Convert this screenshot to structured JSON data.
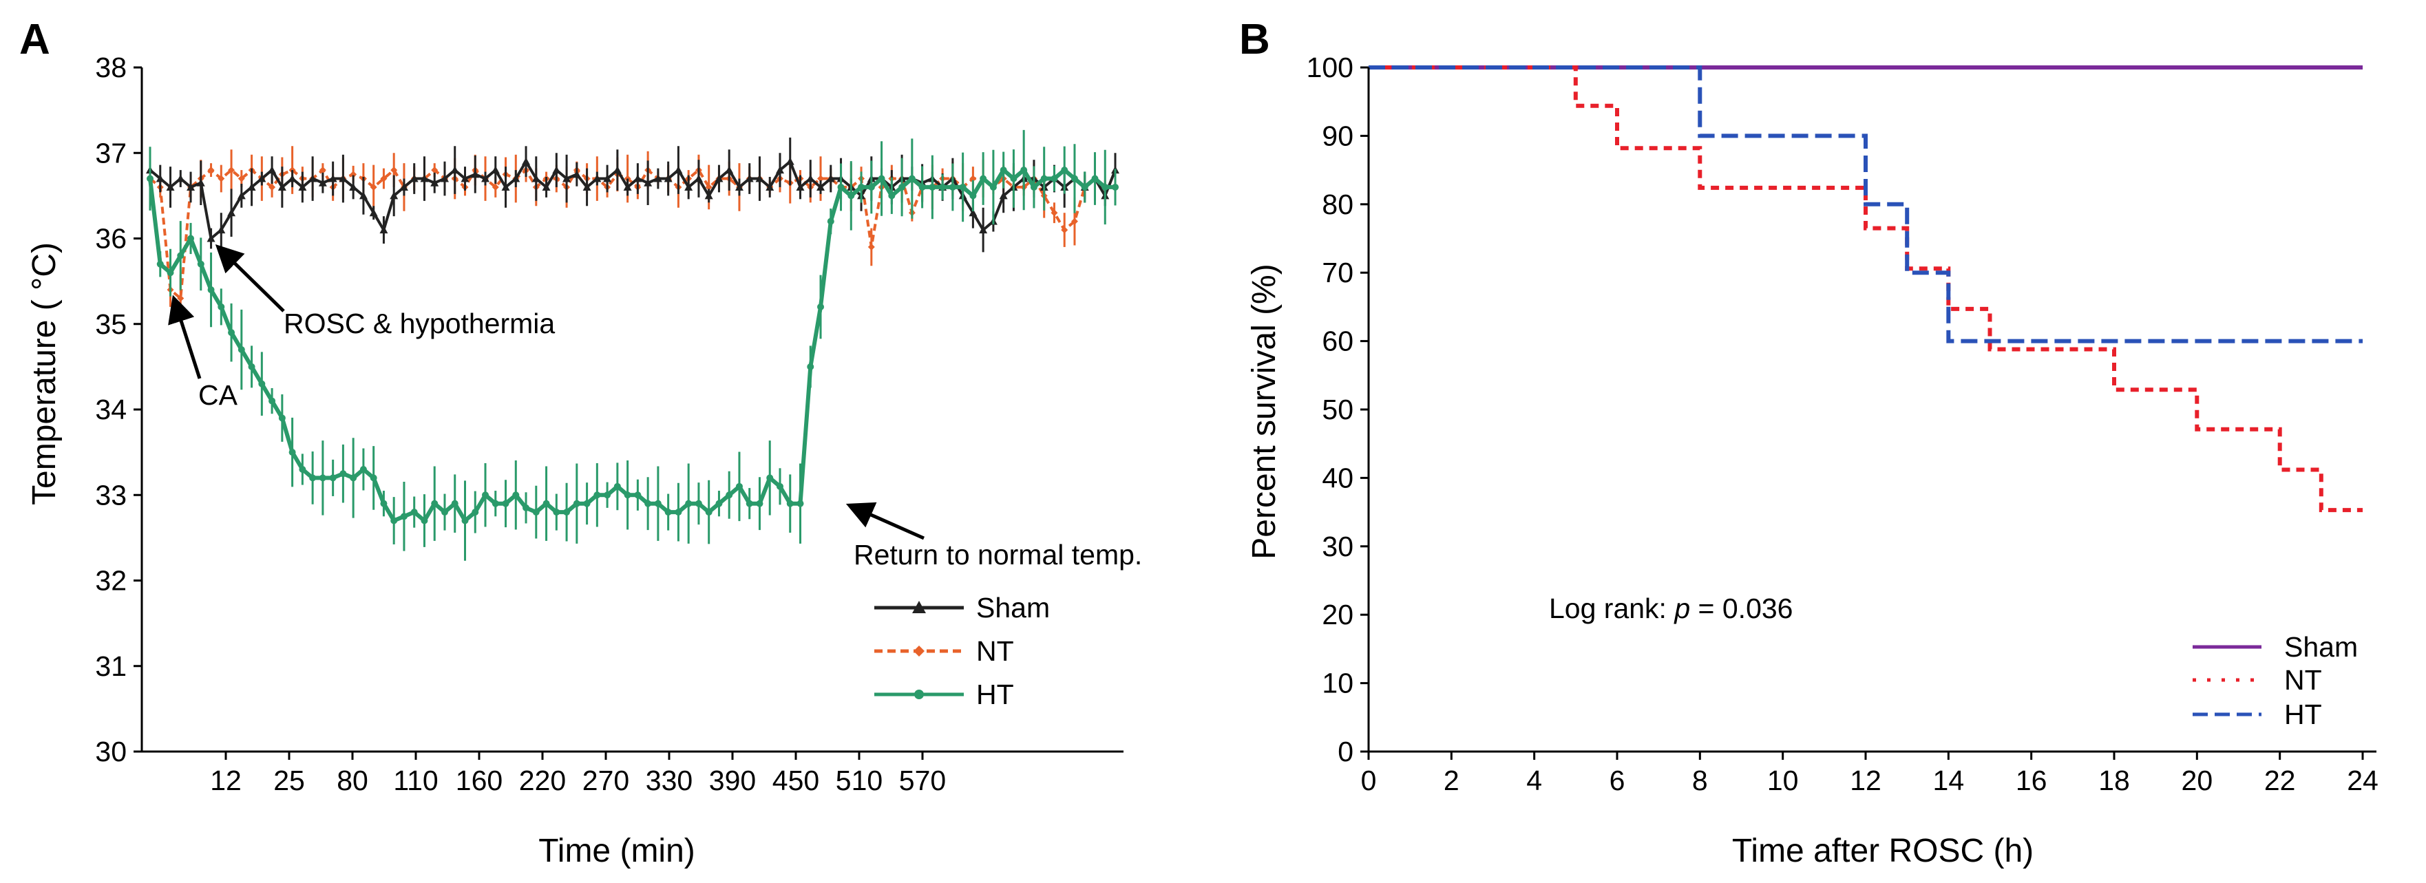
{
  "chart_data": [
    {
      "type": "line",
      "panel": "A",
      "title": "",
      "xlabel": "Time (min)",
      "ylabel": "Temperature ( °C)",
      "ylim": [
        30,
        38
      ],
      "yticks": [
        30,
        31,
        32,
        33,
        34,
        35,
        36,
        37,
        38
      ],
      "xtick_labels": [
        "12",
        "25",
        "80",
        "110",
        "160",
        "220",
        "270",
        "330",
        "390",
        "450",
        "510",
        "570"
      ],
      "n_points": 96,
      "legend": [
        "Sham",
        "NT",
        "HT"
      ],
      "annotations": [
        "CA",
        "ROSC & hypothermia",
        "Return to normal temp."
      ],
      "series": [
        {
          "name": "Sham",
          "color": "#222222",
          "style": "solid",
          "marker": "triangle",
          "values": [
            36.8,
            36.7,
            36.6,
            36.7,
            36.6,
            36.65,
            36.0,
            36.1,
            36.3,
            36.5,
            36.6,
            36.7,
            36.8,
            36.6,
            36.7,
            36.6,
            36.7,
            36.65,
            36.7,
            36.7,
            36.6,
            36.5,
            36.3,
            36.1,
            36.5,
            36.6,
            36.7,
            36.7,
            36.65,
            36.7,
            36.8,
            36.7,
            36.75,
            36.7,
            36.8,
            36.6,
            36.7,
            36.9,
            36.7,
            36.6,
            36.8,
            36.7,
            36.75,
            36.6,
            36.7,
            36.7,
            36.8,
            36.6,
            36.7,
            36.65,
            36.7,
            36.7,
            36.8,
            36.6,
            36.7,
            36.5,
            36.7,
            36.8,
            36.6,
            36.7,
            36.7,
            36.6,
            36.8,
            36.9,
            36.6,
            36.7,
            36.6,
            36.7,
            36.7,
            36.6,
            36.5,
            36.7,
            36.7,
            36.6,
            36.7,
            36.7,
            36.65,
            36.7,
            36.6,
            36.7,
            36.5,
            36.3,
            36.1,
            36.2,
            36.5,
            36.6,
            36.7,
            36.7,
            36.6,
            36.7,
            36.6,
            36.7,
            36.6,
            36.7,
            36.5,
            36.8
          ]
        },
        {
          "name": "NT",
          "color": "#e8622a",
          "style": "dashed",
          "marker": "diamond",
          "values": [
            36.7,
            36.6,
            35.4,
            35.3,
            36.6,
            36.7,
            36.8,
            36.7,
            36.8,
            36.7,
            36.8,
            36.7,
            36.6,
            36.75,
            36.8,
            36.7,
            36.7,
            36.8,
            36.6,
            36.7,
            36.75,
            36.7,
            36.6,
            36.7,
            36.8,
            36.6,
            36.7,
            36.7,
            36.8,
            36.7,
            36.7,
            36.6,
            36.8,
            36.7,
            36.6,
            36.75,
            36.7,
            36.8,
            36.6,
            36.7,
            36.7,
            36.6,
            36.8,
            36.7,
            36.7,
            36.6,
            36.75,
            36.7,
            36.6,
            36.8,
            36.7,
            36.7,
            36.6,
            36.7,
            36.8,
            36.6,
            36.7,
            36.7,
            36.6,
            36.7,
            36.7,
            36.6,
            36.7,
            36.65,
            36.7,
            36.6,
            36.7,
            36.7,
            36.6,
            36.6,
            36.7,
            35.9,
            36.6,
            36.7,
            36.7,
            36.3,
            36.6,
            36.6,
            36.7,
            36.7,
            36.6,
            36.7,
            36.7,
            36.6,
            36.7,
            36.6,
            36.6,
            36.7,
            36.5,
            36.3,
            36.1,
            36.2,
            36.6,
            36.7,
            36.6,
            36.6
          ]
        },
        {
          "name": "HT",
          "color": "#2a9a6a",
          "style": "solid",
          "marker": "circle",
          "values": [
            36.7,
            35.7,
            35.6,
            35.8,
            36.0,
            35.7,
            35.4,
            35.2,
            34.9,
            34.7,
            34.5,
            34.3,
            34.1,
            33.9,
            33.5,
            33.3,
            33.2,
            33.2,
            33.2,
            33.25,
            33.2,
            33.3,
            33.2,
            32.9,
            32.7,
            32.75,
            32.8,
            32.7,
            32.9,
            32.8,
            32.9,
            32.7,
            32.8,
            33.0,
            32.9,
            32.9,
            33.0,
            32.85,
            32.8,
            32.9,
            32.8,
            32.8,
            32.9,
            32.9,
            33.0,
            33.0,
            33.1,
            33.0,
            33.0,
            32.9,
            32.9,
            32.8,
            32.8,
            32.9,
            32.9,
            32.8,
            32.9,
            33.0,
            33.1,
            32.9,
            32.9,
            33.2,
            33.1,
            32.9,
            32.9,
            34.5,
            35.2,
            36.2,
            36.6,
            36.5,
            36.6,
            36.6,
            36.7,
            36.5,
            36.6,
            36.7,
            36.6,
            36.6,
            36.6,
            36.6,
            36.6,
            36.5,
            36.7,
            36.6,
            36.8,
            36.7,
            36.8,
            36.6,
            36.7,
            36.7,
            36.8,
            36.7,
            36.6,
            36.7,
            36.6,
            36.6
          ]
        }
      ]
    },
    {
      "type": "line",
      "panel": "B",
      "title": "",
      "xlabel": "Time after ROSC (h)",
      "ylabel": "Percent survival (%)",
      "xlim": [
        0,
        24
      ],
      "ylim": [
        0,
        100
      ],
      "xticks": [
        0,
        2,
        4,
        6,
        8,
        10,
        12,
        14,
        16,
        18,
        20,
        22,
        24
      ],
      "yticks": [
        0,
        10,
        20,
        30,
        40,
        50,
        60,
        70,
        80,
        90,
        100
      ],
      "legend": [
        "Sham",
        "NT",
        "HT"
      ],
      "annotation": {
        "prefix": "Log rank: ",
        "var": "p",
        "suffix": " = 0.036"
      },
      "series": [
        {
          "name": "Sham",
          "color": "#7b2a9a",
          "style": "solid",
          "points": [
            [
              0,
              100
            ],
            [
              24,
              100
            ]
          ]
        },
        {
          "name": "NT",
          "color": "#e8202a",
          "style": "dotted",
          "points": [
            [
              0,
              100
            ],
            [
              5,
              94.4
            ],
            [
              6,
              88.2
            ],
            [
              8,
              82.4
            ],
            [
              12,
              76.5
            ],
            [
              13,
              70.6
            ],
            [
              14,
              64.7
            ],
            [
              15,
              58.8
            ],
            [
              18,
              52.9
            ],
            [
              20,
              47.1
            ],
            [
              22,
              41.2
            ],
            [
              23,
              35.3
            ],
            [
              24,
              35.3
            ]
          ]
        },
        {
          "name": "HT",
          "color": "#2a52b8",
          "style": "dashed",
          "points": [
            [
              0,
              100
            ],
            [
              8,
              90
            ],
            [
              12,
              80
            ],
            [
              13,
              70
            ],
            [
              14,
              60
            ],
            [
              24,
              60
            ]
          ]
        }
      ]
    }
  ]
}
